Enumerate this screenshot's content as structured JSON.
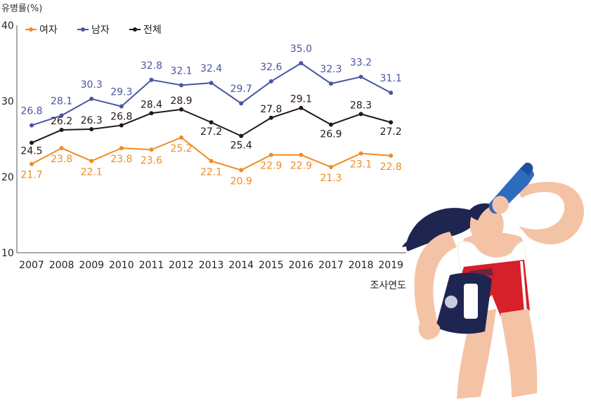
{
  "chart_data": {
    "type": "line",
    "ylabel": "유병률(%)",
    "xlabel": "조사연도",
    "ylim": [
      10,
      40
    ],
    "yticks": [
      10,
      20,
      30,
      40
    ],
    "categories": [
      "2007",
      "2008",
      "2009",
      "2010",
      "2011",
      "2012",
      "2013",
      "2014",
      "2015",
      "2016",
      "2017",
      "2018",
      "2019"
    ],
    "legend_position": "top-left",
    "series": [
      {
        "name": "여자",
        "color": "#F08C1E",
        "values": [
          21.7,
          23.8,
          22.1,
          23.8,
          23.6,
          25.2,
          22.1,
          20.9,
          22.9,
          22.9,
          21.3,
          23.1,
          22.8
        ]
      },
      {
        "name": "남자",
        "color": "#4A55A2",
        "values": [
          26.8,
          28.1,
          30.3,
          29.3,
          32.8,
          32.1,
          32.4,
          29.7,
          32.6,
          35.0,
          32.3,
          33.2,
          31.1
        ]
      },
      {
        "name": "전체",
        "color": "#231815",
        "values": [
          24.5,
          26.2,
          26.3,
          26.8,
          28.4,
          28.9,
          27.2,
          25.4,
          27.8,
          29.1,
          26.9,
          28.3,
          27.2
        ]
      }
    ]
  },
  "illustration": {
    "subject": "woman-drinking-from-bottle",
    "colors": {
      "skin": "#F4C3A6",
      "hair": "#1E2550",
      "shorts": "#D6202A",
      "bottle": "#2F6BBF",
      "bag": "#1E2550"
    }
  }
}
